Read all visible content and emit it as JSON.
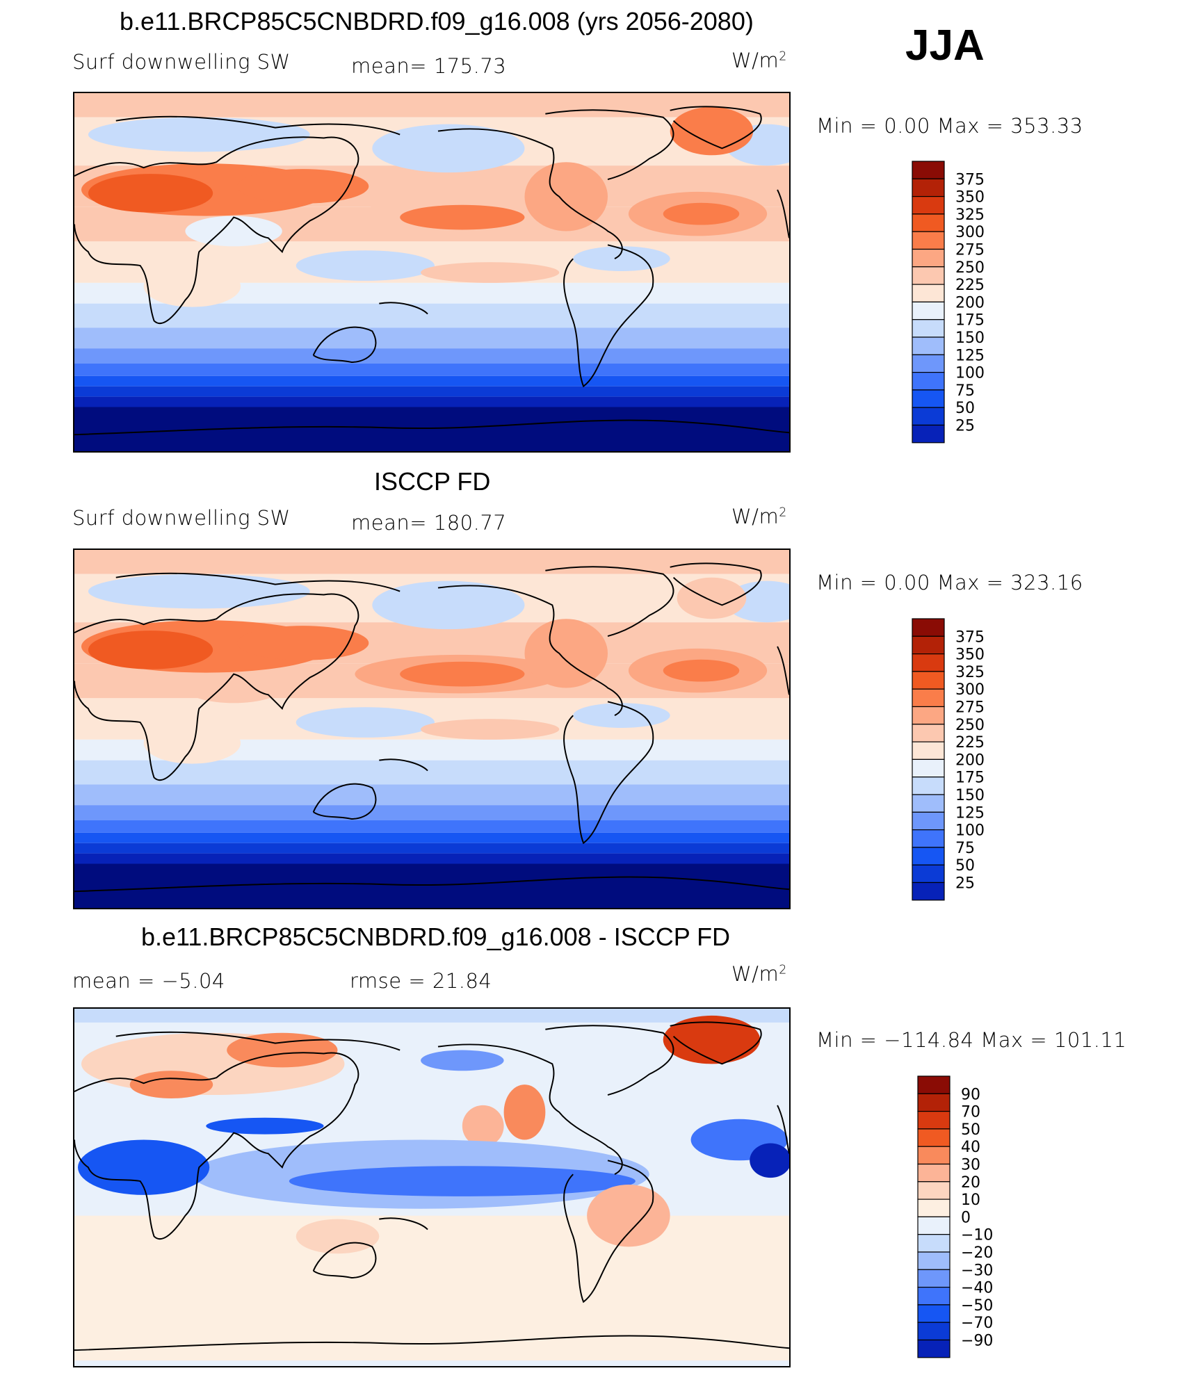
{
  "season": "JJA",
  "palette_main": [
    "#000c7e",
    "#0722b8",
    "#0b3bd6",
    "#1656f3",
    "#3f74fb",
    "#6e97fb",
    "#9fbdfb",
    "#c7dcfb",
    "#e9f1fb",
    "#fde6d6",
    "#fcc8b0",
    "#fca783",
    "#fa7d4a",
    "#f05a22",
    "#d93a10",
    "#b32207",
    "#8a0c05"
  ],
  "palette_diff": [
    "#000c7e",
    "#0722b8",
    "#0b3bd6",
    "#1656f3",
    "#3f74fb",
    "#6e97fb",
    "#9fbdfb",
    "#c7dcfb",
    "#e9f1fb",
    "#fdefe1",
    "#fcd5c0",
    "#fcb497",
    "#f98a5c",
    "#f05a22",
    "#d93a10",
    "#b32207",
    "#8a0c05"
  ],
  "panels": [
    {
      "title": "b.e11.BRCP85C5CNBDRD.f09_g16.008 (yrs 2056-2080)",
      "left_label": "Surf downwelling SW",
      "mid_label": "mean=  175.73",
      "units": "W/m",
      "units_sup": "2",
      "minmax": "Min  =     0.00 Max  =  353.33",
      "levels": [
        "375",
        "350",
        "325",
        "300",
        "275",
        "250",
        "225",
        "200",
        "175",
        "150",
        "125",
        "100",
        "75",
        "50",
        "25"
      ]
    },
    {
      "title": "ISCCP FD",
      "left_label": "Surf downwelling SW",
      "mid_label": "mean=  180.77",
      "units": "W/m",
      "units_sup": "2",
      "minmax": "Min  =     0.00 Max  =  323.16",
      "levels": [
        "375",
        "350",
        "325",
        "300",
        "275",
        "250",
        "225",
        "200",
        "175",
        "150",
        "125",
        "100",
        "75",
        "50",
        "25"
      ]
    },
    {
      "title": "b.e11.BRCP85C5CNBDRD.f09_g16.008 - ISCCP FD",
      "left_label": "mean  =    −5.04",
      "mid_label": "rmse  =    21.84",
      "units": "W/m",
      "units_sup": "2",
      "minmax": "Min  = −114.84 Max  =  101.11",
      "levels": [
        "90",
        "70",
        "50",
        "40",
        "30",
        "20",
        "10",
        "0",
        "−10",
        "−20",
        "−30",
        "−40",
        "−50",
        "−70",
        "−90"
      ]
    }
  ],
  "chart_data": [
    {
      "type": "heatmap",
      "title": "b.e11.BRCP85C5CNBDRD.f09_g16.008 (yrs 2056-2080)",
      "variable": "Surf downwelling SW",
      "units": "W/m2",
      "mean": 175.73,
      "min": 0.0,
      "max": 353.33,
      "levels": [
        25,
        50,
        75,
        100,
        125,
        150,
        175,
        200,
        225,
        250,
        275,
        300,
        325,
        350,
        375
      ],
      "colorbar_position": "right"
    },
    {
      "type": "heatmap",
      "title": "ISCCP FD",
      "variable": "Surf downwelling SW",
      "units": "W/m2",
      "mean": 180.77,
      "min": 0.0,
      "max": 323.16,
      "levels": [
        25,
        50,
        75,
        100,
        125,
        150,
        175,
        200,
        225,
        250,
        275,
        300,
        325,
        350,
        375
      ],
      "colorbar_position": "right"
    },
    {
      "type": "heatmap",
      "title": "b.e11.BRCP85C5CNBDRD.f09_g16.008 - ISCCP FD",
      "units": "W/m2",
      "mean": -5.04,
      "rmse": 21.84,
      "min": -114.84,
      "max": 101.11,
      "levels": [
        -90,
        -70,
        -50,
        -40,
        -30,
        -20,
        -10,
        0,
        10,
        20,
        30,
        40,
        50,
        70,
        90
      ],
      "colorbar_position": "right"
    }
  ]
}
